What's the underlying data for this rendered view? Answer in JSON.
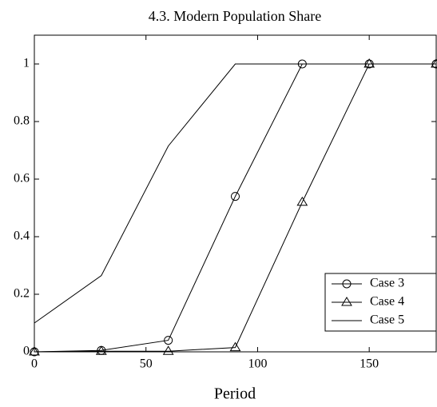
{
  "chart_data": {
    "type": "line",
    "title": "4.3. Modern Population Share",
    "x_label": "Period",
    "x": [
      0,
      30,
      60,
      90,
      120,
      150,
      180
    ],
    "series": [
      {
        "name": "Case 3",
        "color": "#000000",
        "marker": "circle",
        "values": [
          0,
          0.005,
          0.04,
          0.54,
          1,
          1,
          1
        ]
      },
      {
        "name": "Case 4",
        "color": "#000000",
        "marker": "triangle",
        "values": [
          0,
          0.002,
          0.002,
          0.015,
          0.52,
          1,
          1
        ]
      },
      {
        "name": "Case 5",
        "color": "#000000",
        "marker": "none",
        "values": [
          0.1,
          0.265,
          0.715,
          1,
          1,
          1,
          1
        ]
      }
    ],
    "xlim": [
      0,
      180
    ],
    "xticks": [
      0,
      50,
      100,
      150
    ],
    "ylim": [
      0,
      1.1
    ],
    "yticks": [
      0,
      0.2,
      0.4,
      0.6,
      0.8,
      1
    ],
    "grid": false,
    "legend": "lower right"
  }
}
